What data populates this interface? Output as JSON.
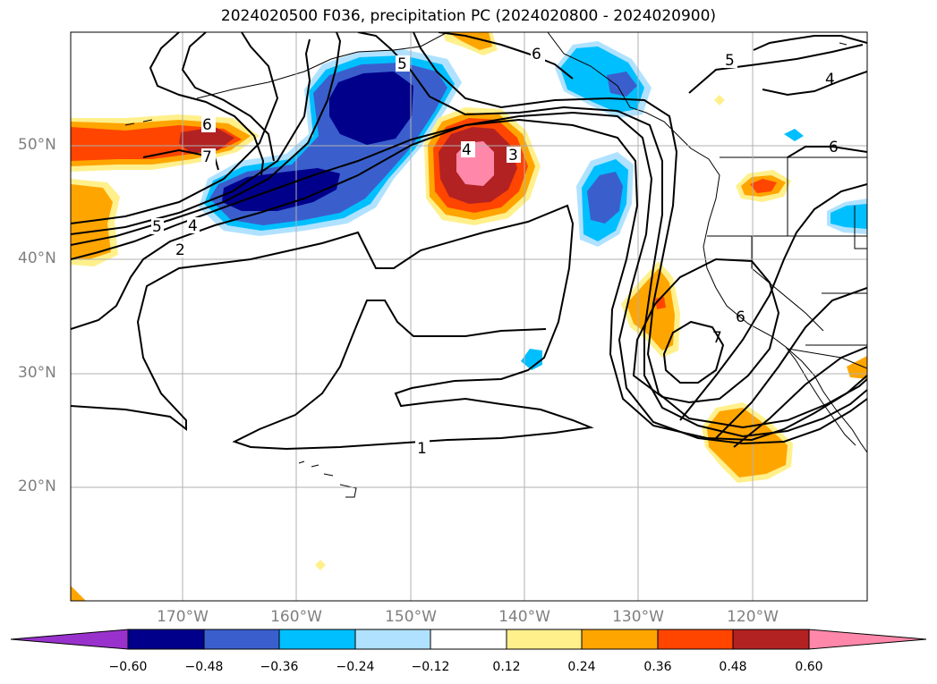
{
  "title": "2024020500 F036, precipitation PC (2024020800 - 2024020900)",
  "lat_labels": [
    "50°N",
    "40°N",
    "30°N",
    "20°N"
  ],
  "lon_labels": [
    "170°W",
    "160°W",
    "150°W",
    "140°W",
    "130°W",
    "120°W"
  ],
  "colorbar": {
    "labels": [
      "−0.60",
      "−0.48",
      "−0.36",
      "−0.24",
      "−0.12",
      "0.12",
      "0.24",
      "0.36",
      "0.48",
      "0.60"
    ],
    "colors": [
      "#9932cc",
      "#00008b",
      "#3a5fcd",
      "#00bfff",
      "#b0e2ff",
      "#ffffff",
      "#fff08c",
      "#ffa500",
      "#ff4500",
      "#b22222",
      "#ff88aa"
    ]
  },
  "contour_labels": [
    "1",
    "2",
    "3",
    "4",
    "4",
    "5",
    "5",
    "5",
    "6",
    "6",
    "6",
    "7",
    "7",
    "4",
    "6"
  ]
}
